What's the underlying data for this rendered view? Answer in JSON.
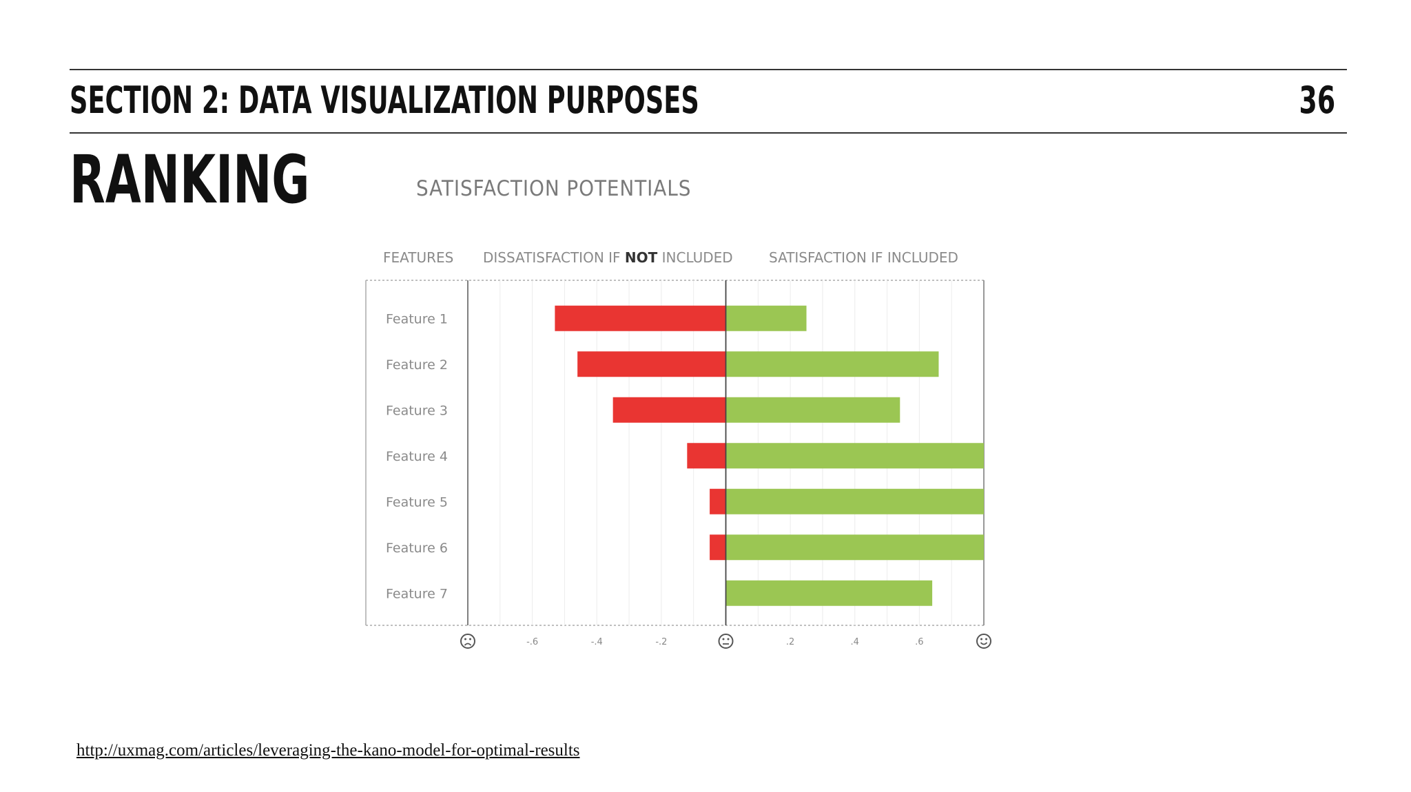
{
  "header": {
    "section_title": "SECTION 2: DATA VISUALIZATION PURPOSES",
    "page_number": "36"
  },
  "slide": {
    "heading": "RANKING"
  },
  "chart_headers": {
    "features": "FEATURES",
    "dissatisfaction_prefix": "DISSATISFACTION IF ",
    "dissatisfaction_emphasis": "NOT",
    "dissatisfaction_suffix": " INCLUDED",
    "satisfaction": "SATISFACTION IF INCLUDED"
  },
  "chart_data": {
    "type": "bar",
    "orientation": "horizontal-diverging",
    "title": "SATISFACTION POTENTIALS",
    "categories": [
      "Feature 1",
      "Feature 2",
      "Feature 3",
      "Feature 4",
      "Feature 5",
      "Feature 6",
      "Feature 7"
    ],
    "series": [
      {
        "values": [
          -0.53,
          -0.46,
          -0.35,
          -0.12,
          -0.05,
          -0.05,
          0.0
        ],
        "color": "#e93532"
      },
      {
        "values": [
          0.25,
          0.66,
          0.54,
          0.8,
          0.8,
          0.8,
          0.64
        ],
        "color": "#9bc653"
      }
    ],
    "xlim": [
      -0.8,
      0.8
    ],
    "x_ticks": [
      -0.6,
      -0.4,
      -0.2,
      0.2,
      0.4,
      0.6
    ],
    "x_tick_labels": [
      "-.6",
      "-.4",
      "-.2",
      ".2",
      ".4",
      ".6"
    ],
    "end_icons": [
      "frown-face",
      "neutral-face",
      "smile-face"
    ],
    "grid": true
  },
  "footer": {
    "source_url": "http://uxmag.com/articles/leveraging-the-kano-model-for-optimal-results"
  }
}
